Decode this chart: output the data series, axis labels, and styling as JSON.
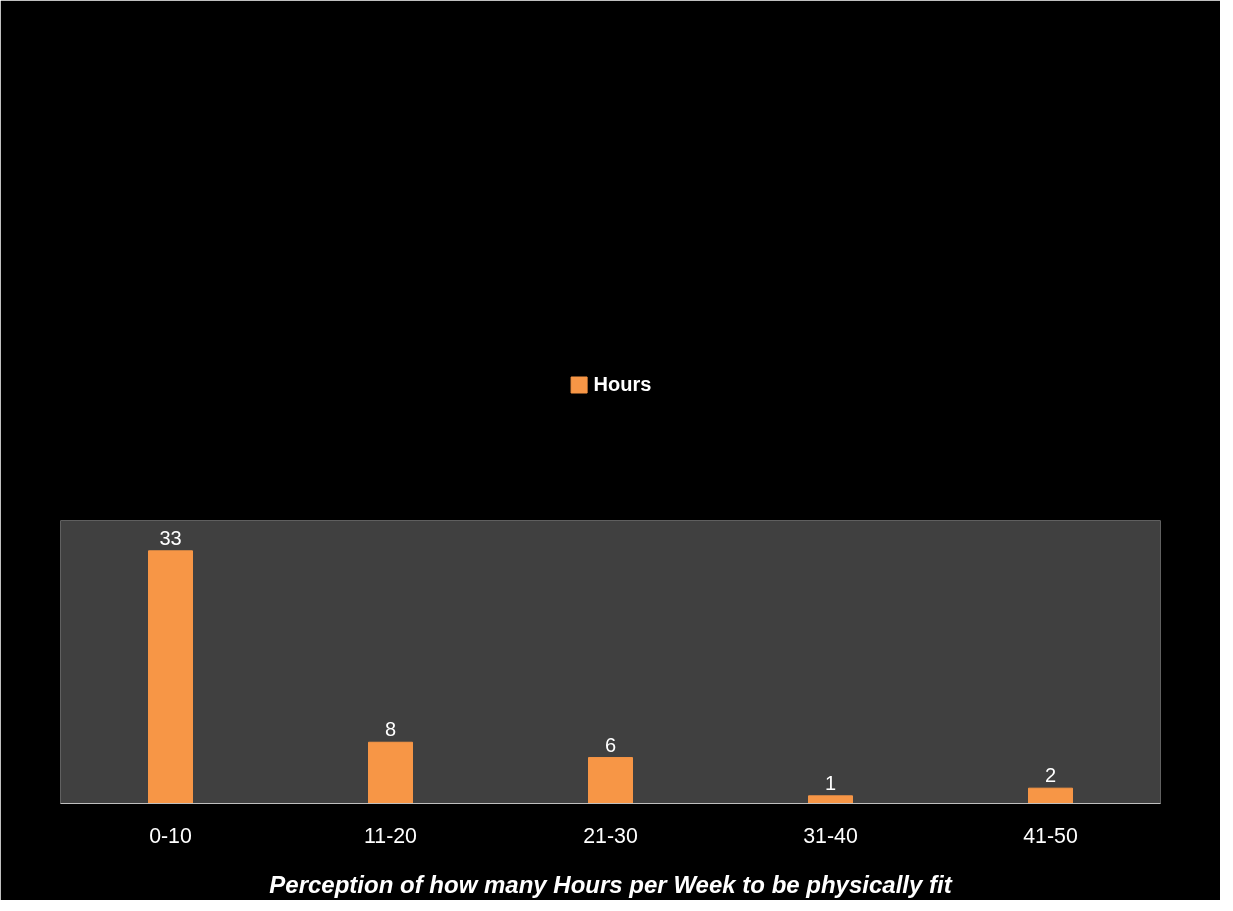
{
  "chart_data": {
    "type": "bar",
    "xlabel": "Perception of how many Hours per Week to be physically fit",
    "categories": [
      "0-10",
      "11-20",
      "21-30",
      "31-40",
      "41-50"
    ],
    "series": [
      {
        "name": "Hours",
        "color": "#f79646",
        "values": [
          33,
          8,
          6,
          1,
          2
        ]
      }
    ],
    "data_labels": true,
    "legend": "top",
    "grid": false
  }
}
